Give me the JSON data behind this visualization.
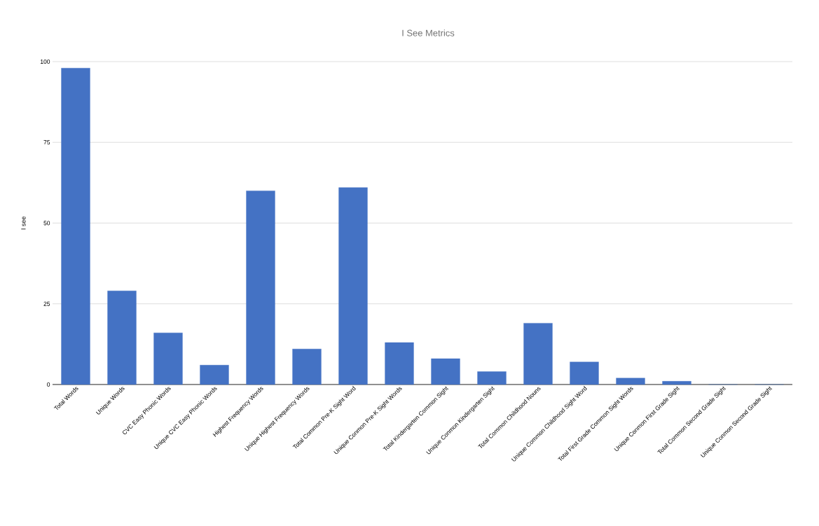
{
  "chart_data": {
    "type": "bar",
    "title": "I See Metrics",
    "ylabel": "I see",
    "categories": [
      "Total Words",
      "Unique Words",
      "CVC Easy Phonic Words",
      "Unique CVC Easy Phonic Words",
      "Highest Frequency Words",
      "Unique Highest Frequency Words",
      "Total Common Pre-K Sight Word",
      "Unique Conmon Pre-K Sight Words",
      "Total Kindergarten Common Sight",
      "Unique Conmon Kindergarten Sight",
      "Total Common Childhood Nouns",
      "Unique Common Childhood Sight Word",
      "Total First Grade Common Sight Words",
      "Unique Conmon First Grade Sight",
      "Total Common Second Grade Sight",
      "Unique Conmon Second Grade Sight"
    ],
    "values": [
      98,
      29,
      16,
      6,
      60,
      11,
      61,
      13,
      8,
      4,
      19,
      7,
      2,
      1,
      0,
      0
    ],
    "color": "#4472c4",
    "ylim": [
      0,
      100
    ],
    "yticks": [
      0,
      25,
      50,
      75,
      100
    ],
    "grid": "y"
  }
}
